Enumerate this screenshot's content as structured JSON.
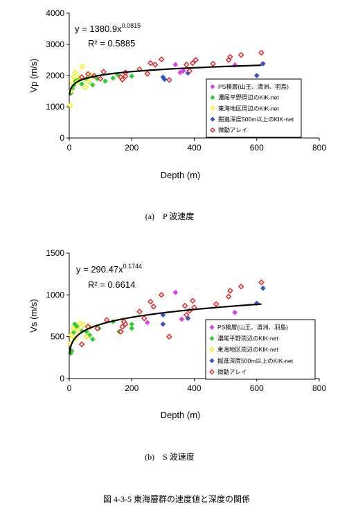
{
  "caption": "図 4-3-5 東海層群の速度値と深度の関係",
  "legend_labels": [
    "PS検層(山王、清洲、羽島)",
    "濃尾平野周辺のKIK-net",
    "東海地区周辺のKIK-net",
    "掘進深度500m以上のKIK-net",
    "微動アレイ"
  ],
  "colors": {
    "PS": "#e040e0",
    "nobi": "#33cc33",
    "tokai": "#f2f200",
    "deep": "#3355cc",
    "array": "#e02020",
    "curve": "#000000"
  },
  "chart_data": [
    {
      "type": "scatter",
      "panel_label": "(a)　P 波速度",
      "xlabel": "Depth (m)",
      "ylabel": "Vp (m/s)",
      "xlim": [
        0,
        800
      ],
      "ylim": [
        0,
        4000
      ],
      "xticks": [
        0,
        200,
        400,
        600,
        800
      ],
      "yticks": [
        0,
        1000,
        2000,
        3000,
        4000
      ],
      "grid": false,
      "legend_position": "right-middle",
      "equation": {
        "prefix": "y = 1380.9x",
        "exponent": "0.0815",
        "r2": "R² = 0.5885"
      },
      "fit": {
        "a": 1380.9,
        "b": 0.0815,
        "x_range": [
          1,
          615
        ]
      },
      "series": [
        {
          "name": "PS検層(山王、清洲、羽島)",
          "color_key": "PS",
          "edge": "solid",
          "points": [
            [
              340,
              2350
            ],
            [
              355,
              2100
            ],
            [
              365,
              2150
            ],
            [
              530,
              2340
            ]
          ]
        },
        {
          "name": "濃尾平野周辺のKIK-net",
          "color_key": "nobi",
          "edge": "solid",
          "points": [
            [
              5,
              1430
            ],
            [
              10,
              1580
            ],
            [
              15,
              1700
            ],
            [
              20,
              1820
            ],
            [
              28,
              1860
            ],
            [
              40,
              1730
            ],
            [
              55,
              1900
            ],
            [
              62,
              1800
            ],
            [
              75,
              1700
            ],
            [
              90,
              1900
            ],
            [
              115,
              1820
            ],
            [
              140,
              1920
            ],
            [
              155,
              2030
            ],
            [
              200,
              1980
            ]
          ]
        },
        {
          "name": "東海地区周辺のKIK-net",
          "color_key": "tokai",
          "edge": "open",
          "points": [
            [
              3,
              1050
            ],
            [
              6,
              1500
            ],
            [
              10,
              1750
            ],
            [
              14,
              1950
            ],
            [
              20,
              2100
            ],
            [
              26,
              1800
            ],
            [
              35,
              1950
            ],
            [
              42,
              2290
            ],
            [
              52,
              1620
            ],
            [
              60,
              1800
            ],
            [
              72,
              1980
            ]
          ]
        },
        {
          "name": "掘進深度500m以上のKIK-net",
          "color_key": "deep",
          "edge": "solid",
          "points": [
            [
              300,
              1950
            ],
            [
              305,
              1880
            ],
            [
              380,
              2080
            ],
            [
              600,
              2000
            ],
            [
              620,
              2380
            ]
          ]
        },
        {
          "name": "微動アレイ",
          "color_key": "array",
          "edge": "open",
          "points": [
            [
              40,
              1950
            ],
            [
              60,
              2050
            ],
            [
              80,
              1990
            ],
            [
              100,
              1900
            ],
            [
              110,
              2120
            ],
            [
              165,
              1950
            ],
            [
              170,
              1870
            ],
            [
              180,
              1980
            ],
            [
              180,
              2100
            ],
            [
              225,
              2200
            ],
            [
              250,
              2060
            ],
            [
              260,
              2400
            ],
            [
              275,
              2350
            ],
            [
              295,
              2520
            ],
            [
              320,
              1860
            ],
            [
              375,
              2350
            ],
            [
              385,
              2150
            ],
            [
              395,
              2400
            ],
            [
              405,
              2500
            ],
            [
              460,
              2380
            ],
            [
              510,
              2500
            ],
            [
              515,
              2600
            ],
            [
              550,
              2660
            ],
            [
              615,
              2730
            ]
          ]
        }
      ]
    },
    {
      "type": "scatter",
      "panel_label": "(b)　S 波速度",
      "xlabel": "Depth (m)",
      "ylabel": "Vs (m/s)",
      "xlim": [
        0,
        800
      ],
      "ylim": [
        0,
        1500
      ],
      "xticks": [
        0,
        200,
        400,
        600,
        800
      ],
      "yticks": [
        0,
        500,
        1000,
        1500
      ],
      "grid": false,
      "legend_position": "right-middle",
      "equation": {
        "prefix": "y = 290.47x",
        "exponent": "0.1744",
        "r2": "R² = 0.6614"
      },
      "fit": {
        "a": 290.47,
        "b": 0.1744,
        "x_range": [
          1,
          615
        ]
      },
      "series": [
        {
          "name": "PS検層(山王、清洲、羽島)",
          "color_key": "PS",
          "edge": "solid",
          "points": [
            [
              250,
              670
            ],
            [
              340,
              1030
            ],
            [
              360,
              710
            ],
            [
              530,
              790
            ]
          ]
        },
        {
          "name": "濃尾平野周辺のKIK-net",
          "color_key": "nobi",
          "edge": "solid",
          "points": [
            [
              4,
              300
            ],
            [
              8,
              330
            ],
            [
              14,
              550
            ],
            [
              18,
              650
            ],
            [
              25,
              620
            ],
            [
              40,
              570
            ],
            [
              55,
              560
            ],
            [
              65,
              520
            ],
            [
              75,
              470
            ],
            [
              95,
              600
            ],
            [
              140,
              680
            ],
            [
              160,
              560
            ],
            [
              200,
              600
            ],
            [
              200,
              650
            ]
          ]
        },
        {
          "name": "東海地区周辺のKIK-net",
          "color_key": "tokai",
          "edge": "open",
          "points": [
            [
              3,
              420
            ],
            [
              6,
              520
            ],
            [
              12,
              600
            ],
            [
              18,
              480
            ],
            [
              28,
              580
            ],
            [
              35,
              660
            ],
            [
              45,
              640
            ],
            [
              55,
              500
            ],
            [
              68,
              610
            ]
          ]
        },
        {
          "name": "掘進深度500m以上のKIK-net",
          "color_key": "deep",
          "edge": "solid",
          "points": [
            [
              300,
              650
            ],
            [
              300,
              760
            ],
            [
              380,
              720
            ],
            [
              600,
              900
            ],
            [
              620,
              1080
            ]
          ]
        },
        {
          "name": "微動アレイ",
          "color_key": "array",
          "edge": "open",
          "points": [
            [
              40,
              410
            ],
            [
              60,
              620
            ],
            [
              90,
              600
            ],
            [
              120,
              700
            ],
            [
              165,
              560
            ],
            [
              170,
              620
            ],
            [
              175,
              680
            ],
            [
              180,
              650
            ],
            [
              225,
              800
            ],
            [
              240,
              720
            ],
            [
              260,
              920
            ],
            [
              270,
              860
            ],
            [
              295,
              1000
            ],
            [
              320,
              500
            ],
            [
              370,
              870
            ],
            [
              375,
              760
            ],
            [
              385,
              810
            ],
            [
              395,
              930
            ],
            [
              400,
              850
            ],
            [
              470,
              890
            ],
            [
              510,
              980
            ],
            [
              515,
              1050
            ],
            [
              550,
              1100
            ],
            [
              615,
              1150
            ]
          ]
        }
      ]
    }
  ]
}
